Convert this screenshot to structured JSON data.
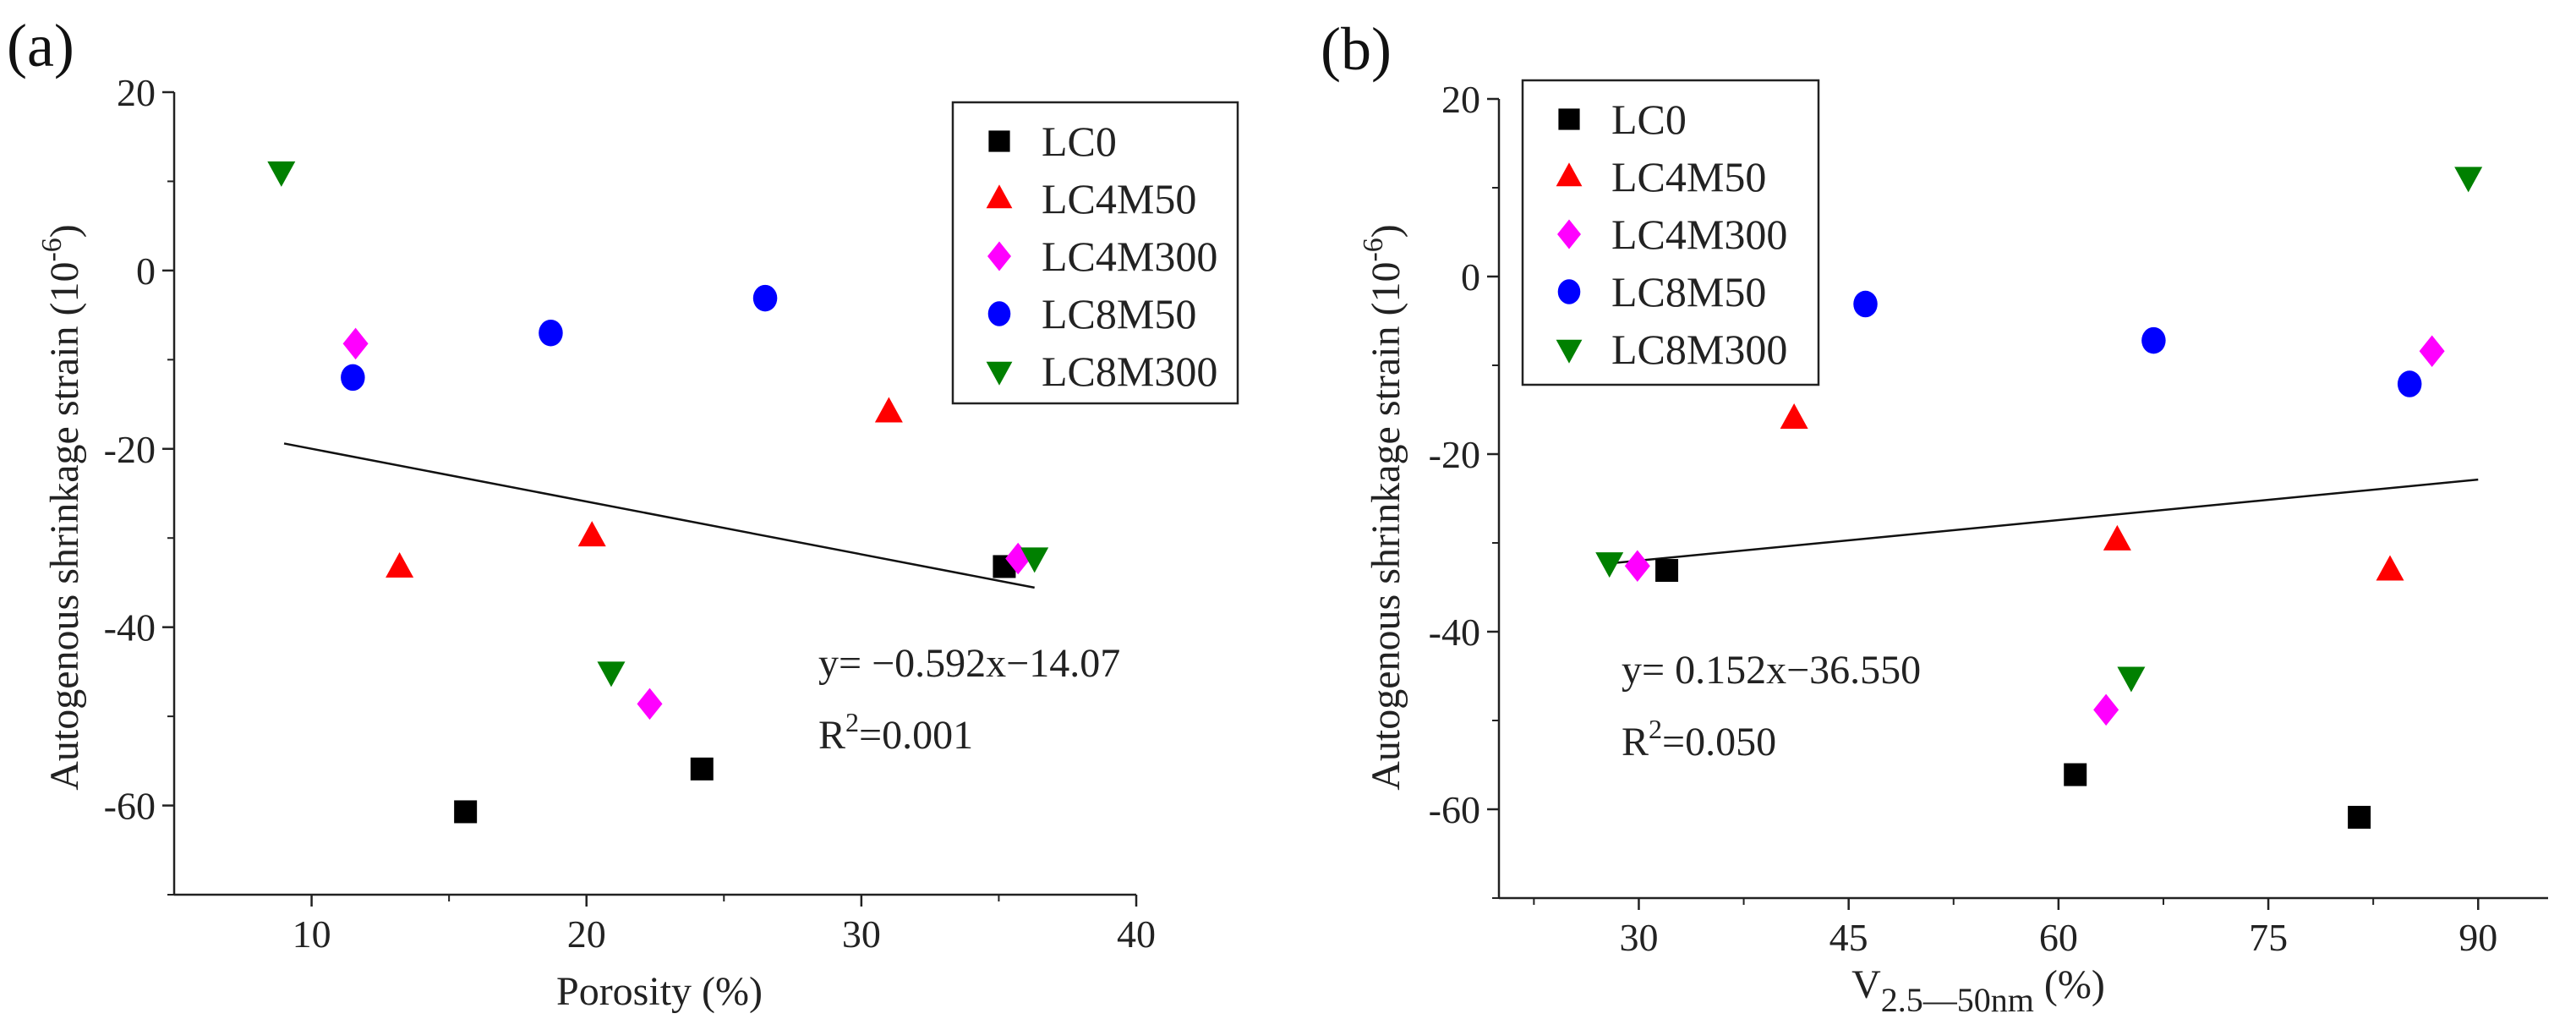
{
  "chart_data": [
    {
      "type": "scatter",
      "panel_label": "(a)",
      "xlabel": "Porosity (%)",
      "ylabel": "Autogenous shrinkage strain (10",
      "ylabel_sup": "-6",
      "ylabel_end": ")",
      "xlim": [
        5,
        40
      ],
      "ylim": [
        -70,
        20
      ],
      "xticks": [
        10,
        20,
        30,
        40
      ],
      "yticks": [
        20,
        0,
        -20,
        -40,
        -60
      ],
      "legend_position": "top-right",
      "series": [
        {
          "name": "LC0",
          "marker": "square",
          "color": "#000000",
          "x": [
            35.2,
            15.6,
            24.2
          ],
          "y": [
            -33.2,
            -60.7,
            -55.9
          ]
        },
        {
          "name": "LC4M50",
          "marker": "triangle-up",
          "color": "#ff0000",
          "x": [
            13.2,
            20.2,
            31.0
          ],
          "y": [
            -33.3,
            -29.8,
            -15.9
          ]
        },
        {
          "name": "LC4M300",
          "marker": "diamond",
          "color": "#ff00ff",
          "x": [
            11.6,
            22.3,
            35.7
          ],
          "y": [
            -8.2,
            -48.6,
            -32.3
          ]
        },
        {
          "name": "LC8M50",
          "marker": "circle",
          "color": "#0000ff",
          "x": [
            11.5,
            18.7,
            26.5
          ],
          "y": [
            -12.0,
            -7.0,
            -3.1
          ]
        },
        {
          "name": "LC8M300",
          "marker": "triangle-down",
          "color": "#008000",
          "x": [
            8.9,
            20.9,
            36.3
          ],
          "y": [
            11.1,
            -45.0,
            -32.2
          ]
        }
      ],
      "fit": {
        "slope": -0.592,
        "intercept": -14.07,
        "x_range": [
          9.0,
          36.3
        ],
        "equation": "y= −0.592x−14.07",
        "r2_label": "R",
        "r2_sup": "2",
        "r2_value": "=0.001"
      }
    },
    {
      "type": "scatter",
      "panel_label": "(b)",
      "xlabel": "V",
      "xlabel_sub": "2.5—50nm",
      "xlabel_end": " (%)",
      "ylabel": "Autogenous shrinkage strain (10",
      "ylabel_sup": "-6",
      "ylabel_end": ")",
      "xlim": [
        20,
        95
      ],
      "ylim": [
        -70,
        20
      ],
      "xticks": [
        30,
        45,
        60,
        75,
        90
      ],
      "yticks": [
        20,
        0,
        -20,
        -40,
        -60
      ],
      "legend_position": "top-left",
      "series": [
        {
          "name": "LC0",
          "marker": "square",
          "color": "#000000",
          "x": [
            32.0,
            61.2,
            81.5
          ],
          "y": [
            -33.1,
            -56.1,
            -60.9
          ]
        },
        {
          "name": "LC4M50",
          "marker": "triangle-up",
          "color": "#ff0000",
          "x": [
            41.1,
            64.2,
            83.7
          ],
          "y": [
            -16.0,
            -29.7,
            -33.1
          ]
        },
        {
          "name": "LC4M300",
          "marker": "diamond",
          "color": "#ff00ff",
          "x": [
            29.9,
            63.4,
            86.7
          ],
          "y": [
            -32.6,
            -48.8,
            -8.4
          ]
        },
        {
          "name": "LC8M50",
          "marker": "circle",
          "color": "#0000ff",
          "x": [
            46.2,
            66.8,
            85.1
          ],
          "y": [
            -3.1,
            -7.2,
            -12.1
          ]
        },
        {
          "name": "LC8M300",
          "marker": "triangle-down",
          "color": "#008000",
          "x": [
            27.9,
            65.2,
            89.3
          ],
          "y": [
            -32.2,
            -45.1,
            11.2
          ]
        }
      ],
      "fit": {
        "slope": 0.152,
        "intercept": -36.55,
        "x_range": [
          28.0,
          90.0
        ],
        "equation": "y= 0.152x−36.550",
        "r2_label": "R",
        "r2_sup": "2",
        "r2_value": "=0.050"
      }
    }
  ]
}
